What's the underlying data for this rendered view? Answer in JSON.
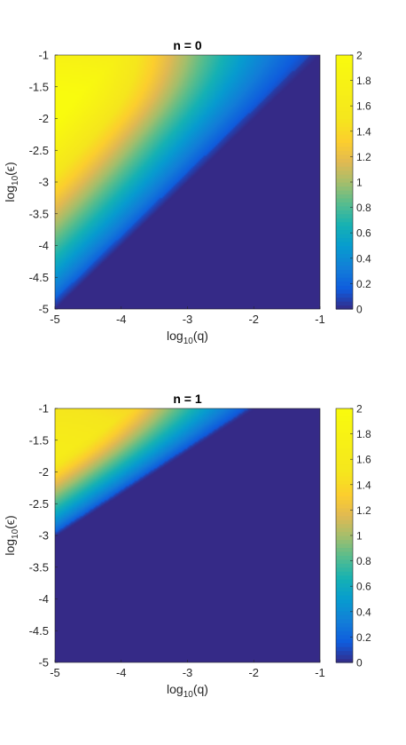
{
  "chart_data": [
    {
      "type": "heatmap",
      "title": "n = 0",
      "xlabel": {
        "prefix": "log",
        "sub": "10",
        "suffix": "(q)"
      },
      "ylabel": {
        "prefix": "log",
        "sub": "10",
        "suffix": "(ϵ)"
      },
      "xlim": [
        -5,
        -1
      ],
      "ylim": [
        -5,
        -1
      ],
      "xticks": [
        "-5",
        "-4",
        "-3",
        "-2",
        "-1"
      ],
      "yticks": [
        "-1",
        "-1.5",
        "-2",
        "-2.5",
        "-3",
        "-3.5",
        "-4",
        "-4.5",
        "-5"
      ],
      "colorbar": {
        "range": [
          0,
          2
        ],
        "ticks": [
          "0",
          "0.2",
          "0.4",
          "0.6",
          "0.8",
          "1",
          "1.2",
          "1.4",
          "1.6",
          "1.8",
          "2"
        ]
      },
      "colormap": "parula",
      "field": {
        "peak": [
          -5,
          -2
        ],
        "peak_value": 2.0,
        "zero_boundary_slope": 1.0,
        "zero_boundary_intercept": 0.0
      }
    },
    {
      "type": "heatmap",
      "title": "n = 1",
      "xlabel": {
        "prefix": "log",
        "sub": "10",
        "suffix": "(q)"
      },
      "ylabel": {
        "prefix": "log",
        "sub": "10",
        "suffix": "(ϵ)"
      },
      "xlim": [
        -5,
        -1
      ],
      "ylim": [
        -5,
        -1
      ],
      "xticks": [
        "-5",
        "-4",
        "-3",
        "-2",
        "-1"
      ],
      "yticks": [
        "-1",
        "-1.5",
        "-2",
        "-2.5",
        "-3",
        "-3.5",
        "-4",
        "-4.5",
        "-5"
      ],
      "colorbar": {
        "range": [
          0,
          2
        ],
        "ticks": [
          "0",
          "0.2",
          "0.4",
          "0.6",
          "0.8",
          "1",
          "1.2",
          "1.4",
          "1.6",
          "1.8",
          "2"
        ]
      },
      "colormap": "parula",
      "field": {
        "peak": [
          -5,
          -1.8
        ],
        "peak_value": 1.6,
        "zero_boundary_slope": 0.67,
        "zero_boundary_intercept": 0.33
      }
    }
  ]
}
